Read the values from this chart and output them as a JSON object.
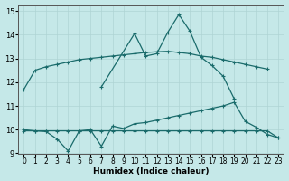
{
  "xlabel": "Humidex (Indice chaleur)",
  "bg_color": "#c5e8e8",
  "line_color": "#1a6b6b",
  "grid_color": "#afd4d4",
  "xlim": [
    -0.5,
    23.5
  ],
  "ylim": [
    9.0,
    15.25
  ],
  "yticks": [
    9,
    10,
    11,
    12,
    13,
    14,
    15
  ],
  "xticks": [
    0,
    1,
    2,
    3,
    4,
    5,
    6,
    7,
    8,
    9,
    10,
    11,
    12,
    13,
    14,
    15,
    16,
    17,
    18,
    19,
    20,
    21,
    22,
    23
  ],
  "line1_x": [
    0,
    1,
    2,
    3,
    4,
    5,
    6,
    7,
    8,
    9,
    10,
    11,
    12,
    13,
    14,
    15,
    16,
    17,
    18,
    19,
    20,
    21,
    22
  ],
  "line1_y": [
    11.7,
    12.5,
    12.65,
    12.75,
    12.85,
    12.95,
    13.0,
    13.05,
    13.1,
    13.15,
    13.2,
    13.25,
    13.28,
    13.3,
    13.25,
    13.2,
    13.1,
    13.05,
    12.95,
    12.85,
    12.75,
    12.65,
    12.55
  ],
  "line2_x": [
    7,
    10,
    11,
    12,
    13,
    14,
    15,
    16,
    17,
    18,
    19
  ],
  "line2_y": [
    11.8,
    14.05,
    13.1,
    13.2,
    14.1,
    14.85,
    14.15,
    13.05,
    12.7,
    12.25,
    11.3
  ],
  "line3_x": [
    0,
    1,
    2,
    3,
    4,
    5,
    6,
    7,
    8,
    9,
    10,
    11,
    12,
    13,
    14,
    15,
    16,
    17,
    18,
    19,
    20,
    21,
    22,
    23
  ],
  "line3_y": [
    10.0,
    9.95,
    9.92,
    9.6,
    9.1,
    9.95,
    10.0,
    9.3,
    10.15,
    10.05,
    10.25,
    10.3,
    10.4,
    10.5,
    10.6,
    10.7,
    10.8,
    10.9,
    11.0,
    11.15,
    10.35,
    10.1,
    9.8,
    9.65
  ],
  "line4_x": [
    0,
    1,
    2,
    3,
    4,
    5,
    6,
    7,
    8,
    9,
    10,
    11,
    12,
    13,
    14,
    15,
    16,
    17,
    18,
    19,
    20,
    21,
    22,
    23
  ],
  "line4_y": [
    9.95,
    9.95,
    9.95,
    9.95,
    9.95,
    9.95,
    9.95,
    9.95,
    9.95,
    9.95,
    9.95,
    9.95,
    9.95,
    9.95,
    9.95,
    9.95,
    9.95,
    9.95,
    9.95,
    9.95,
    9.95,
    9.95,
    9.95,
    9.65
  ]
}
